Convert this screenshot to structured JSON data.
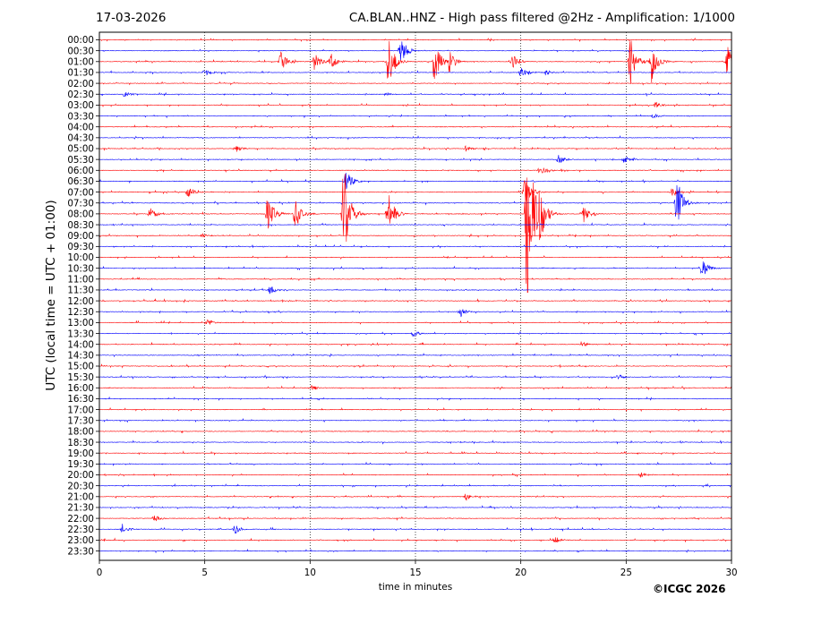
{
  "header": {
    "date": "17-03-2026",
    "title": "CA.BLAN..HNZ - High pass filtered @2Hz - Amplification: 1/1000"
  },
  "footer": {
    "copyright": "©ICGC 2026"
  },
  "chart_data": {
    "type": "line",
    "title": "CA.BLAN..HNZ - High pass filtered @2Hz - Amplification: 1/1000",
    "xlabel": "time in minutes",
    "ylabel": "UTC (local time = UTC + 01:00)",
    "xlim": [
      0,
      30
    ],
    "x_ticks": [
      0,
      5,
      10,
      15,
      20,
      25,
      30
    ],
    "grid": "vertical dotted lines at x ticks",
    "colors": {
      "even_rows": "#ff0000",
      "odd_rows": "#0000ff",
      "grid": "#000000"
    },
    "row_labels": [
      "00:00",
      "00:30",
      "01:00",
      "01:30",
      "02:00",
      "02:30",
      "03:00",
      "03:30",
      "04:00",
      "04:30",
      "05:00",
      "05:30",
      "06:00",
      "06:30",
      "07:00",
      "07:30",
      "08:00",
      "08:30",
      "09:00",
      "09:30",
      "10:00",
      "10:30",
      "11:00",
      "11:30",
      "12:00",
      "12:30",
      "13:00",
      "13:30",
      "14:00",
      "14:30",
      "15:00",
      "15:30",
      "16:00",
      "16:30",
      "17:00",
      "17:30",
      "18:00",
      "18:30",
      "19:00",
      "19:30",
      "20:00",
      "20:30",
      "21:00",
      "21:30",
      "22:00",
      "22:30",
      "23:00",
      "23:30"
    ],
    "events": [
      {
        "row": 1,
        "t": 14.3,
        "amp": 1.4
      },
      {
        "row": 2,
        "t": 8.6,
        "amp": 1.0
      },
      {
        "row": 2,
        "t": 10.2,
        "amp": 0.9
      },
      {
        "row": 2,
        "t": 11.0,
        "amp": 0.8
      },
      {
        "row": 2,
        "t": 13.7,
        "amp": 2.5
      },
      {
        "row": 2,
        "t": 15.9,
        "amp": 2.0
      },
      {
        "row": 2,
        "t": 16.6,
        "amp": 1.0
      },
      {
        "row": 2,
        "t": 19.6,
        "amp": 0.9
      },
      {
        "row": 2,
        "t": 25.2,
        "amp": 2.3
      },
      {
        "row": 2,
        "t": 26.2,
        "amp": 2.0
      },
      {
        "row": 2,
        "t": 29.8,
        "amp": 1.5
      },
      {
        "row": 3,
        "t": 5.0,
        "amp": 0.4
      },
      {
        "row": 3,
        "t": 20.0,
        "amp": 0.5
      },
      {
        "row": 3,
        "t": 21.2,
        "amp": 0.3
      },
      {
        "row": 5,
        "t": 1.2,
        "amp": 0.3
      },
      {
        "row": 5,
        "t": 13.6,
        "amp": 0.2
      },
      {
        "row": 6,
        "t": 26.4,
        "amp": 0.3
      },
      {
        "row": 7,
        "t": 26.3,
        "amp": 0.3
      },
      {
        "row": 10,
        "t": 6.5,
        "amp": 0.3
      },
      {
        "row": 10,
        "t": 17.4,
        "amp": 0.3
      },
      {
        "row": 11,
        "t": 21.8,
        "amp": 0.5
      },
      {
        "row": 11,
        "t": 24.9,
        "amp": 0.4
      },
      {
        "row": 12,
        "t": 20.9,
        "amp": 0.5
      },
      {
        "row": 13,
        "t": 11.7,
        "amp": 1.2
      },
      {
        "row": 14,
        "t": 4.2,
        "amp": 0.5
      },
      {
        "row": 14,
        "t": 20.2,
        "amp": 1.5
      },
      {
        "row": 14,
        "t": 27.2,
        "amp": 0.5
      },
      {
        "row": 15,
        "t": 27.4,
        "amp": 2.6
      },
      {
        "row": 16,
        "t": 2.4,
        "amp": 0.9
      },
      {
        "row": 16,
        "t": 8.0,
        "amp": 1.9
      },
      {
        "row": 16,
        "t": 9.3,
        "amp": 1.5
      },
      {
        "row": 16,
        "t": 11.6,
        "amp": 5.0
      },
      {
        "row": 16,
        "t": 13.7,
        "amp": 2.2
      },
      {
        "row": 16,
        "t": 20.3,
        "amp": 9.5
      },
      {
        "row": 16,
        "t": 20.9,
        "amp": 2.6
      },
      {
        "row": 16,
        "t": 23.0,
        "amp": 0.8
      },
      {
        "row": 18,
        "t": 4.9,
        "amp": 0.2
      },
      {
        "row": 21,
        "t": 28.6,
        "amp": 0.9
      },
      {
        "row": 23,
        "t": 8.1,
        "amp": 0.4
      },
      {
        "row": 25,
        "t": 17.1,
        "amp": 0.5
      },
      {
        "row": 26,
        "t": 5.1,
        "amp": 0.4
      },
      {
        "row": 27,
        "t": 14.9,
        "amp": 0.3
      },
      {
        "row": 28,
        "t": 22.9,
        "amp": 0.3
      },
      {
        "row": 31,
        "t": 24.6,
        "amp": 0.3
      },
      {
        "row": 32,
        "t": 10.1,
        "amp": 0.3
      },
      {
        "row": 40,
        "t": 25.7,
        "amp": 0.3
      },
      {
        "row": 42,
        "t": 17.4,
        "amp": 0.4
      },
      {
        "row": 44,
        "t": 2.6,
        "amp": 0.4
      },
      {
        "row": 45,
        "t": 1.1,
        "amp": 0.5
      },
      {
        "row": 45,
        "t": 6.4,
        "amp": 0.5
      },
      {
        "row": 46,
        "t": 21.6,
        "amp": 0.4
      }
    ]
  }
}
